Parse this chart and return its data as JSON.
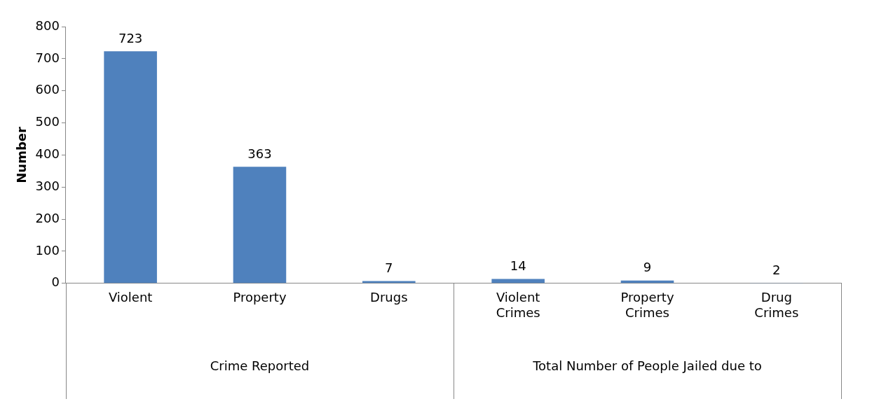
{
  "chart_data": {
    "type": "bar",
    "ylabel": "Number",
    "categories": [
      "Violent",
      "Property",
      "Drugs",
      "Violent Crimes",
      "Property Crimes",
      "Drug Crimes"
    ],
    "values": [
      723,
      363,
      7,
      14,
      9,
      2
    ],
    "color": "#4f81bd",
    "ylim": [
      0,
      800
    ],
    "yticks": [
      0,
      100,
      200,
      300,
      400,
      500,
      600,
      700,
      800
    ],
    "grid": false,
    "legend": false,
    "data_labels": true,
    "annotations": [
      "Crime Reported",
      "Total Number of People Jailed due to"
    ]
  }
}
